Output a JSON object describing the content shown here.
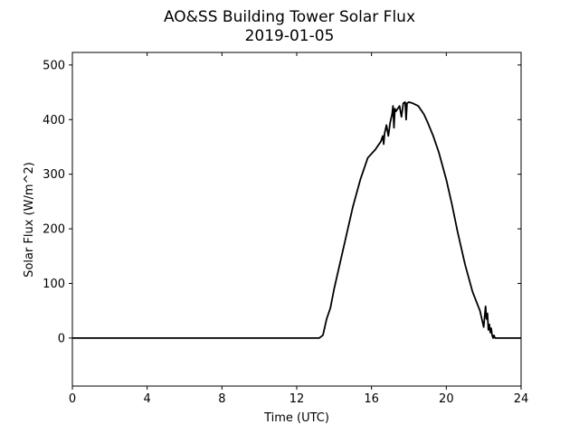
{
  "chart_data": {
    "type": "line",
    "title": "AO&SS Building Tower Solar Flux",
    "subtitle": "2019-01-05",
    "xlabel": "Time (UTC)",
    "ylabel": "Solar Flux (W/m^2)",
    "xlim": [
      0,
      24
    ],
    "ylim": [
      -88,
      523
    ],
    "xticks": [
      0,
      4,
      8,
      12,
      16,
      20,
      24
    ],
    "yticks": [
      0,
      100,
      200,
      300,
      400,
      500
    ],
    "grid": false,
    "legend": "none",
    "line_color": "#000000",
    "series": [
      {
        "x": [
          0,
          4,
          8,
          12,
          13.2,
          13.4,
          13.5,
          13.6,
          13.8,
          14.0,
          14.3,
          14.6,
          15.0,
          15.4,
          15.8,
          16.2,
          16.5,
          16.6,
          16.65,
          16.7,
          16.8,
          16.9,
          17.0,
          17.1,
          17.15,
          17.2,
          17.25,
          17.3,
          17.4,
          17.5,
          17.6,
          17.7,
          17.8,
          17.85,
          17.9,
          18.0,
          18.2,
          18.5,
          18.8,
          19.0,
          19.3,
          19.6,
          20.0,
          20.3,
          20.6,
          21.0,
          21.4,
          21.8,
          22.0,
          22.1,
          22.15,
          22.2,
          22.25,
          22.3,
          22.35,
          22.4,
          22.45,
          22.5,
          22.55,
          22.6,
          22.7,
          22.8,
          23.0,
          24
        ],
        "y": [
          0,
          0,
          0,
          0,
          0,
          5,
          20,
          35,
          55,
          90,
          135,
          180,
          240,
          290,
          330,
          345,
          360,
          370,
          355,
          375,
          390,
          370,
          395,
          410,
          425,
          385,
          420,
          415,
          420,
          425,
          405,
          430,
          432,
          400,
          430,
          432,
          430,
          425,
          410,
          395,
          370,
          340,
          290,
          245,
          195,
          135,
          85,
          50,
          20,
          58,
          35,
          45,
          15,
          25,
          10,
          18,
          5,
          0,
          5,
          0,
          0,
          0,
          0,
          0
        ]
      }
    ]
  }
}
